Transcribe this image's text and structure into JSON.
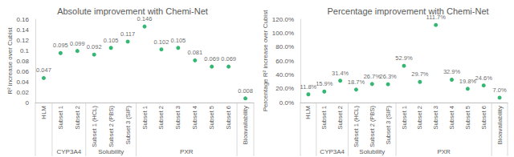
{
  "chart_data": [
    {
      "type": "scatter",
      "title": "Absolute improvement with Chemi-Net",
      "y_label": "R² increase over Cubist",
      "categories": [
        null,
        "Subset 1",
        "Subset 2",
        "Subset 1 (HCL)",
        "Subset 2 (PBS)",
        "Subset 3 (SIF)",
        "Subset 1",
        "Subset 2",
        "Subset 3",
        "Subset 4",
        "Subset 5",
        "Subset 6",
        null
      ],
      "groups": [
        {
          "label": "HLM",
          "count": 1
        },
        {
          "label": "CYP3A4",
          "count": 2
        },
        {
          "label": "Solubility",
          "count": 3
        },
        {
          "label": "PXR",
          "count": 6
        },
        {
          "label": "Bioavailability",
          "count": 1
        }
      ],
      "values": [
        0.047,
        0.095,
        0.099,
        0.092,
        0.105,
        0.117,
        0.146,
        0.102,
        0.105,
        0.081,
        0.069,
        0.069,
        0.008
      ],
      "color": "#00a550",
      "marker": "circle",
      "data_labels": true,
      "grid": false,
      "ylim": [
        0,
        0.16
      ],
      "yticks": [
        0,
        0.02,
        0.04,
        0.06,
        0.08,
        0.1,
        0.12,
        0.14,
        0.16
      ]
    },
    {
      "type": "scatter",
      "title": "Percentage improvement with Chemi-Net",
      "y_label": "Percentage R² increase over Cubist",
      "categories": [
        null,
        "Subset 1",
        "Subset 2",
        "Subset 1 (HCL)",
        "Subset 2 (PBS)",
        "Subset 3 (SIF)",
        "Subset 1",
        "Subset 2",
        "Subset 3",
        "Subset 4",
        "Subset 5",
        "Subset 6",
        null
      ],
      "groups": [
        {
          "label": "HLM",
          "count": 1
        },
        {
          "label": "CYP3A4",
          "count": 2
        },
        {
          "label": "Solubility",
          "count": 3
        },
        {
          "label": "PXR",
          "count": 6
        },
        {
          "label": "Bioavailability",
          "count": 1
        }
      ],
      "values": [
        11.8,
        15.9,
        31.4,
        18.7,
        26.7,
        26.3,
        52.9,
        29.7,
        111.7,
        32.9,
        19.8,
        24.6,
        7.0
      ],
      "value_labels": [
        "11.8%",
        "15.9%",
        "31.4%",
        "18.7%",
        "26.7%",
        "26.3%",
        "52.9%",
        "29.7%",
        "111.7%",
        "32.9%",
        "19.8%",
        "24.6%",
        "7.0%"
      ],
      "color": "#00a550",
      "marker": "circle",
      "data_labels": true,
      "grid": false,
      "ylim": [
        0,
        120
      ],
      "yticks": [
        {
          "value": 0,
          "label": "0.0%"
        },
        {
          "value": 20,
          "label": "20.0%"
        },
        {
          "value": 40,
          "label": "40.0%"
        },
        {
          "value": 60,
          "label": "60.0%"
        },
        {
          "value": 80,
          "label": "80.0%"
        },
        {
          "value": 100,
          "label": "100.0%"
        },
        {
          "value": 120,
          "label": "120.0%"
        }
      ]
    }
  ]
}
